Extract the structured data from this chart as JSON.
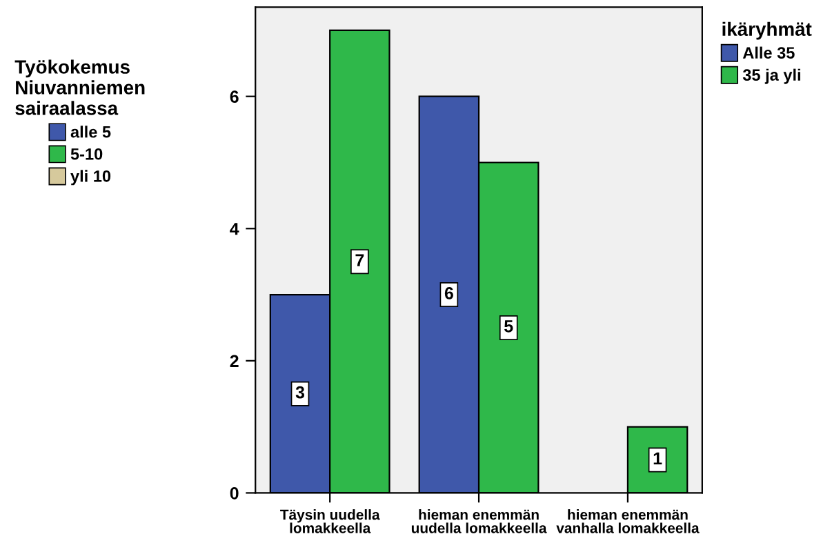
{
  "chart_data": [
    {
      "type": "other",
      "legend_title": "Työkokemus\nNiuvanniemen\nsairaalassa",
      "legend": "left",
      "series": [
        {
          "name": "alle 5",
          "color": "#3f58aa"
        },
        {
          "name": "5-10",
          "color": "#2fb84a"
        },
        {
          "name": "yli 10",
          "color": "#d6c99c"
        }
      ]
    },
    {
      "type": "bar",
      "categories": [
        "Täysin uudella\nlomakkeella",
        "hieman enemmän\nuudella lomakkeella",
        "hieman enemmän\nvanhalla lomakkeella"
      ],
      "series": [
        {
          "name": "Alle 35",
          "color": "#3f58aa",
          "values": [
            3,
            6,
            null
          ]
        },
        {
          "name": "35 ja yli",
          "color": "#2fb84a",
          "values": [
            7,
            5,
            1
          ]
        }
      ],
      "ylim": [
        0,
        7.35
      ],
      "yticks": [
        0,
        2,
        4,
        6
      ],
      "grid": false,
      "data_labels": true,
      "legend": "top right",
      "legend_title": "ikäryhmät"
    }
  ]
}
